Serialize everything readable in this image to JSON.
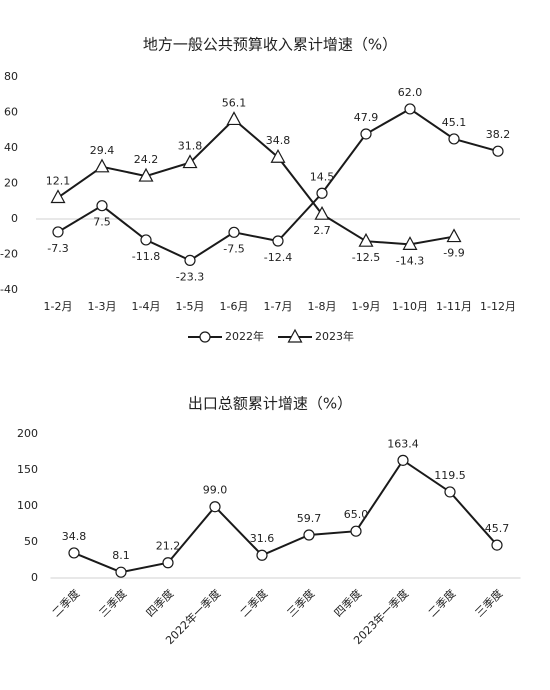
{
  "chart_data": [
    {
      "type": "line",
      "title": "地方一般公共预算收入累计增速（%）",
      "categories": [
        "1-2月",
        "1-3月",
        "1-4月",
        "1-5月",
        "1-6月",
        "1-7月",
        "1-8月",
        "1-9月",
        "1-10月",
        "1-11月",
        "1-12月"
      ],
      "series": [
        {
          "name": "2022年",
          "color": "#1a1a1a",
          "marker": "circle",
          "values": [
            -7.3,
            7.5,
            -11.8,
            -23.3,
            -7.5,
            -12.4,
            14.5,
            47.9,
            62,
            45.1,
            38.2
          ],
          "value_labels": [
            "-7.3",
            "7.5",
            "-11.8",
            "-23.3",
            "-7.5",
            "-12.4",
            "14.5",
            "47.9",
            "62.0",
            "45.1",
            "38.2"
          ]
        },
        {
          "name": "2023年",
          "color": "#1a1a1a",
          "marker": "triangle",
          "values": [
            12.1,
            29.4,
            24.2,
            31.8,
            56.1,
            34.8,
            2.7,
            -12.5,
            -14.3,
            -9.9,
            null
          ],
          "value_labels": [
            "12.1",
            "29.4",
            "24.2",
            "31.8",
            "56.1",
            "34.8",
            "2.7",
            "-12.5",
            "-14.3",
            "-9.9",
            null
          ]
        }
      ],
      "ylim": [
        -40,
        80
      ],
      "yticks": [
        -40,
        -20,
        0,
        20,
        40,
        60,
        80
      ],
      "legend": "bottom"
    },
    {
      "type": "line",
      "title": "出口总额累计增速（%）",
      "categories": [
        "二季度",
        "三季度",
        "四季度",
        "2022年一季度",
        "二季度",
        "三季度",
        "四季度",
        "2023年一季度",
        "二季度",
        "三季度"
      ],
      "values": [
        34.8,
        8.1,
        21.2,
        99,
        31.6,
        59.7,
        65,
        163.4,
        119.5,
        45.7
      ],
      "value_labels": [
        "34.8",
        "8.1",
        "21.2",
        "99.0",
        "31.6",
        "59.7",
        "65.0",
        "163.4",
        "119.5",
        "45.7"
      ],
      "color": "#1a1a1a",
      "marker": "circle",
      "ylim": [
        0,
        200
      ],
      "yticks": [
        0,
        50,
        100,
        150,
        200
      ]
    }
  ]
}
